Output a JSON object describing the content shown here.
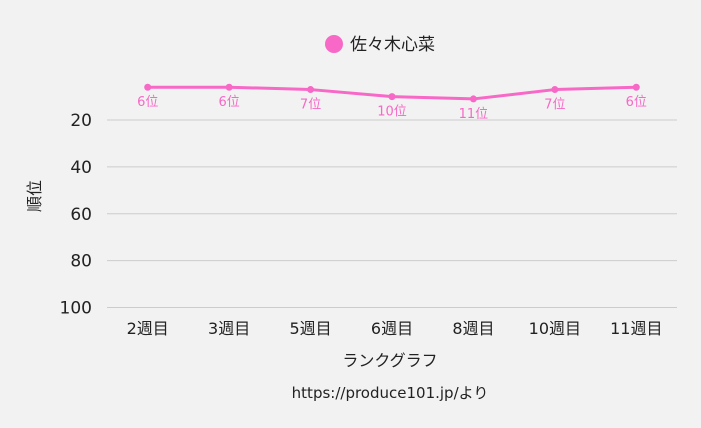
{
  "chart_data": {
    "type": "line",
    "categories": [
      "2週目",
      "3週目",
      "5週目",
      "6週目",
      "8週目",
      "10週目",
      "11週目"
    ],
    "series": [
      {
        "name": "佐々木心菜",
        "values": [
          6,
          6,
          7,
          10,
          11,
          7,
          6
        ],
        "color": "#f768c7"
      }
    ],
    "data_labels": [
      "6位",
      "6位",
      "7位",
      "10位",
      "11位",
      "7位",
      "6位"
    ],
    "yticks": [
      20,
      40,
      60,
      80,
      100
    ],
    "ylim": [
      1,
      100
    ],
    "y_reversed": true,
    "ylabel": "順位",
    "xlabel": "ランクグラフ",
    "grid": true,
    "legend_position": "top-center"
  },
  "source_text": "https://produce101.jp/より"
}
